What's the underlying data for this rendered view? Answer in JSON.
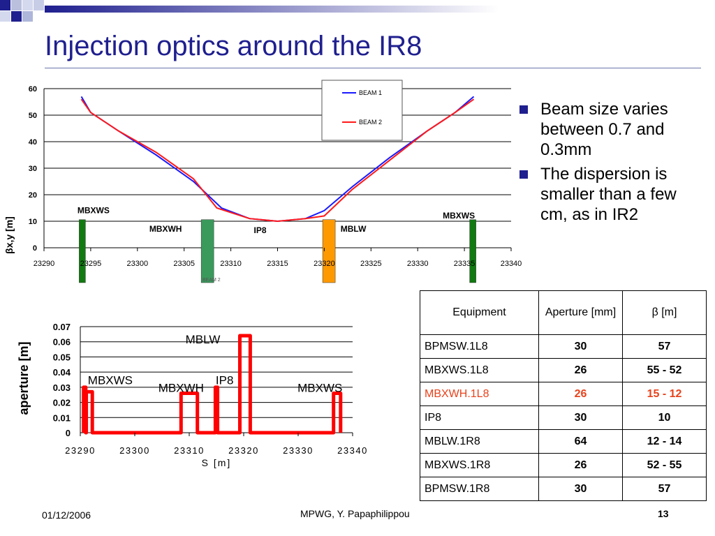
{
  "slide": {
    "title": "Injection optics around the IR8",
    "bullets": [
      "Beam size varies between 0.7 and 0.3mm",
      "The dispersion is smaller than a few cm, as in IR2"
    ]
  },
  "colors": {
    "title": "#1f1f8f",
    "beam1": "#1a1aff",
    "beam2": "#ff1a1a",
    "highlight": "#e8421b"
  },
  "table": {
    "headers": [
      "Equipment",
      "Aperture [mm]",
      "β [m]"
    ],
    "rows": [
      {
        "equipment": "BPMSW.1L8",
        "aperture": "30",
        "beta": "57"
      },
      {
        "equipment": "MBXWS.1L8",
        "aperture": "26",
        "beta": "55 - 52"
      },
      {
        "equipment": "MBXWH.1L8",
        "aperture": "26",
        "beta": "15 - 12"
      },
      {
        "equipment": "IP8",
        "aperture": "30",
        "beta": "10"
      },
      {
        "equipment": "MBLW.1R8",
        "aperture": "64",
        "beta": "12 - 14"
      },
      {
        "equipment": "MBXWS.1R8",
        "aperture": "26",
        "beta": "52 - 55"
      },
      {
        "equipment": "BPMSW.1R8",
        "aperture": "30",
        "beta": "57"
      }
    ]
  },
  "footer": {
    "date": "01/12/2006",
    "author": "MPWG, Y. Papaphilippou",
    "page": "13"
  },
  "chart_data": [
    {
      "type": "line",
      "ylabel": "βx,y [m]",
      "xlim": [
        23290,
        23340
      ],
      "ylim": [
        0,
        60
      ],
      "xticks": [
        23290,
        23295,
        23300,
        23305,
        23310,
        23315,
        23320,
        23325,
        23330,
        23335,
        23340
      ],
      "yticks": [
        0,
        10,
        20,
        30,
        40,
        50,
        60
      ],
      "grid": "horizontal",
      "legend_position": "top-center",
      "series": [
        {
          "name": "BEAM 1",
          "color": "#1a1aff",
          "x": [
            23294,
            23295,
            23298,
            23302,
            23306,
            23309,
            23312,
            23315,
            23318,
            23320,
            23323,
            23327,
            23331,
            23334,
            23336
          ],
          "y": [
            57,
            51,
            44,
            35,
            25,
            15,
            11,
            10,
            11,
            14,
            23,
            34,
            44,
            51,
            57
          ]
        },
        {
          "name": "BEAM 2",
          "color": "#ff1a1a",
          "x": [
            23294,
            23295,
            23298,
            23302,
            23306,
            23308.5,
            23312,
            23315,
            23318,
            23320,
            23323,
            23327,
            23331,
            23334,
            23336
          ],
          "y": [
            56,
            51,
            44,
            36,
            26,
            15,
            11,
            10,
            11,
            12,
            22,
            33,
            44,
            51,
            56
          ]
        }
      ],
      "elements": [
        {
          "label": "MBXWS",
          "x": 23294.1,
          "color": "#117a11"
        },
        {
          "label": "MBXWH",
          "x": 23307.5,
          "color": "#3a9a5c"
        },
        {
          "label": "IP8",
          "x": 23315,
          "color": null
        },
        {
          "label": "MBLW",
          "x": 23320.5,
          "color": "#ff9900"
        },
        {
          "label": "MBXWS",
          "x": 23335.9,
          "color": "#117a11"
        }
      ],
      "annotations": [
        "BEAM 2"
      ]
    },
    {
      "type": "line",
      "xlabel": "S [m]",
      "ylabel": "aperture [m]",
      "xlim": [
        23290,
        23340
      ],
      "ylim": [
        0,
        0.07
      ],
      "xticks": [
        23290,
        23300,
        23310,
        23320,
        23330,
        23340
      ],
      "xtick_labels": [
        "23290",
        "23300",
        "23310",
        "23320",
        "23330",
        "23340"
      ],
      "yticks": [
        "0",
        "0.01",
        "0.02",
        "0.03",
        "0.04",
        "0.05",
        "0.06",
        "0.07"
      ],
      "grid": "horizontal",
      "series": [
        {
          "name": "",
          "color": "#ff0000",
          "x": [
            23290.6,
            23290.6,
            23291,
            23291,
            23291.1,
            23291.1,
            23292.2,
            23292.2,
            23299,
            23308.5,
            23308.5,
            23311.5,
            23311.5,
            23314.8,
            23314.8,
            23315.2,
            23315.2,
            23319.3,
            23319.3,
            23321.2,
            23321.2,
            23327,
            23336.5,
            23336.5,
            23337.8,
            23337.8
          ],
          "y": [
            0,
            0.03,
            0.03,
            0,
            0,
            0.027,
            0.027,
            0,
            0,
            0,
            0.026,
            0.026,
            0,
            0,
            0.03,
            0.03,
            0,
            0,
            0.064,
            0.064,
            0,
            0,
            0,
            0.026,
            0.026,
            0
          ]
        }
      ],
      "annotations": [
        {
          "text": "MBXWS",
          "x": 23295.5,
          "y": 0.032
        },
        {
          "text": "MBXWH",
          "x": 23308.5,
          "y": 0.027
        },
        {
          "text": "IP8",
          "x": 23316.5,
          "y": 0.032
        },
        {
          "text": "MBLW",
          "x": 23312.5,
          "y": 0.059
        },
        {
          "text": "MBXWS",
          "x": 23334,
          "y": 0.027
        }
      ]
    }
  ]
}
